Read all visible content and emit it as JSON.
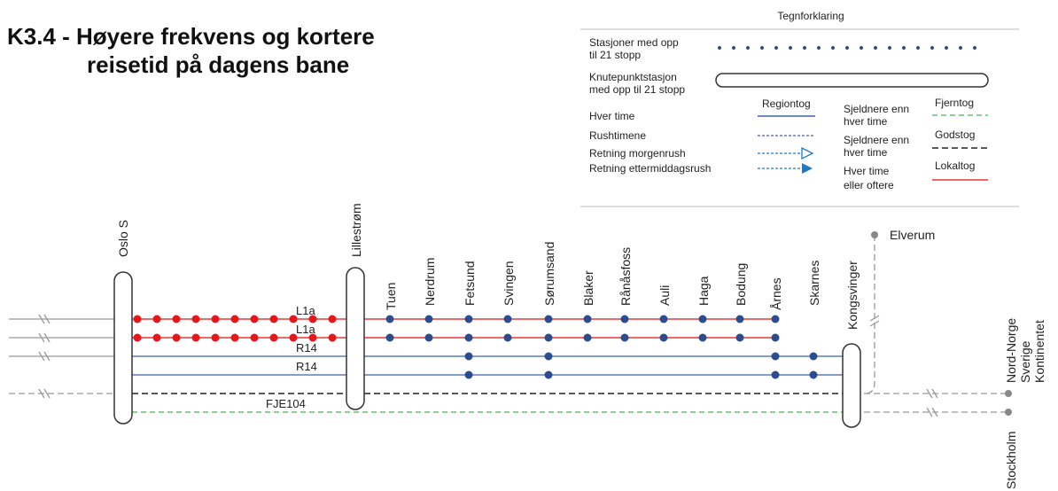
{
  "title": {
    "lines": [
      "K3.4 - Høyere frekvens og kortere",
      "reisetid på dagens bane"
    ]
  },
  "legend": {
    "title": "Tegnforklaring",
    "station": [
      "Stasjoner med opp",
      "til 21 stopp"
    ],
    "hub": [
      "Knutepunktstasjon",
      "med opp til 21 stopp"
    ],
    "regiontog": "Regiontog",
    "hver_time": "Hver time",
    "rushtimene": "Rushtimene",
    "morgenrush": "Retning morgenrush",
    "ettermiddagsrush": "Retning ettermiddagsrush",
    "fjerntog": {
      "name": "Fjerntog",
      "frequency": [
        "Sjeldnere enn",
        "hver time"
      ]
    },
    "godstog": {
      "name": "Godstog",
      "frequency": [
        "Sjeldnere enn",
        "hver time"
      ]
    },
    "lokaltog": {
      "name": "Lokaltog",
      "frequency": [
        "Hver time",
        "eller oftere"
      ]
    }
  },
  "stations": [
    "Oslo S",
    "Lillestrøm",
    "Tuen",
    "Nerdrum",
    "Fetsund",
    "Svingen",
    "Sørumsand",
    "Blaker",
    "Rånåsfoss",
    "Auli",
    "Haga",
    "Bodung",
    "Årnes",
    "Skarnes",
    "Kongsvinger"
  ],
  "lines": [
    "L1a",
    "L1a",
    "R14",
    "R14",
    "FJE104"
  ],
  "destinations": {
    "elverum": "Elverum",
    "east": [
      "Nord-Norge",
      "Sverige",
      "Kontinentet"
    ],
    "stockholm": "Stockholm"
  }
}
